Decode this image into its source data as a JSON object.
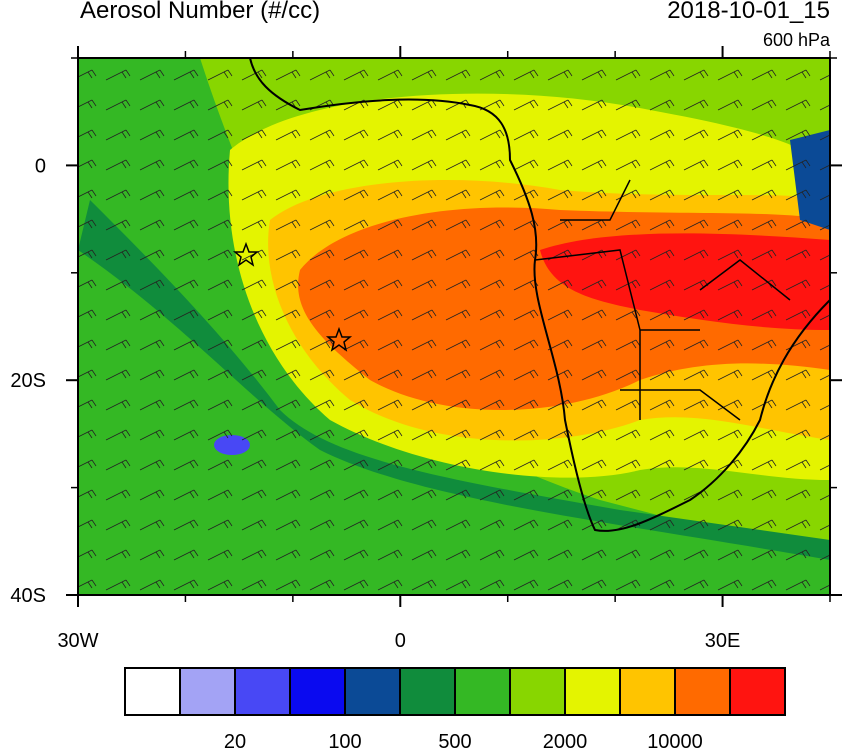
{
  "chart_data": {
    "type": "map",
    "title": "Aerosol Number (#/cc)",
    "time": "2018-10-01_15",
    "level": "600 hPa",
    "xlim": [
      -30,
      40
    ],
    "ylim": [
      -40,
      10
    ],
    "xticks": [
      {
        "value": -30,
        "label": "30W"
      },
      0,
      {
        "value": 30,
        "label": "30E"
      }
    ],
    "yticks": [
      0,
      {
        "value": -20,
        "label": "20S"
      },
      {
        "value": -40,
        "label": "40S"
      }
    ],
    "x_minor_ticks": [
      -20,
      -10,
      10,
      20,
      40
    ],
    "y_minor_ticks": [
      10,
      -10,
      -30
    ],
    "colorbar": {
      "colors": [
        "#ffffff",
        "#a3a3f5",
        "#4848f5",
        "#0a0af0",
        "#0b4a96",
        "#108c3c",
        "#34b824",
        "#88d600",
        "#e4f400",
        "#ffc400",
        "#ff6a00",
        "#ff1410"
      ],
      "labels": [
        20,
        100,
        500,
        2000,
        10000
      ]
    }
  }
}
